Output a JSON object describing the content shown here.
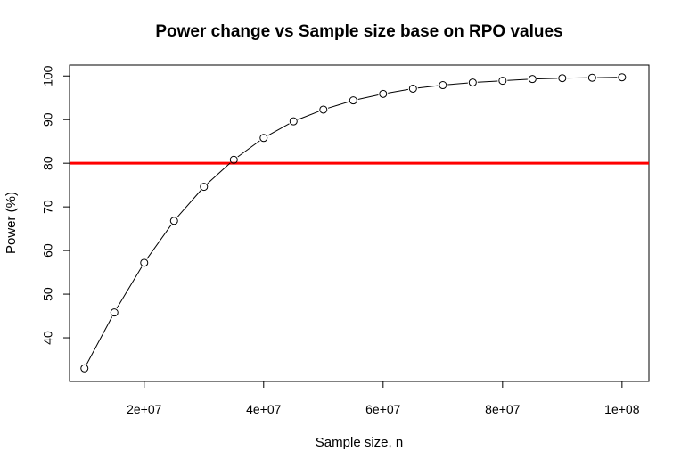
{
  "chart_data": {
    "type": "line",
    "title": "Power change vs Sample size base on RPO values",
    "xlabel": "Sample size, n",
    "ylabel": "Power (%)",
    "xlim": [
      7500000,
      104500000
    ],
    "ylim": [
      30,
      102.5
    ],
    "x_ticks": [
      20000000,
      40000000,
      60000000,
      80000000,
      100000000
    ],
    "x_tick_labels": [
      "2e+07",
      "4e+07",
      "6e+07",
      "8e+07",
      "1e+08"
    ],
    "y_ticks": [
      40,
      50,
      60,
      70,
      80,
      90,
      100
    ],
    "y_tick_labels": [
      "40",
      "50",
      "60",
      "70",
      "80",
      "90",
      "100"
    ],
    "grid": false,
    "series": [
      {
        "marker": "open-circle",
        "color": "#000000",
        "x": [
          10000000,
          15000000,
          20000000,
          25000000,
          30000000,
          35000000,
          40000000,
          45000000,
          50000000,
          55000000,
          60000000,
          65000000,
          70000000,
          75000000,
          80000000,
          85000000,
          90000000,
          95000000,
          100000000
        ],
        "y": [
          33.0,
          45.8,
          57.2,
          66.8,
          74.6,
          80.8,
          85.8,
          89.6,
          92.3,
          94.4,
          95.9,
          97.1,
          97.9,
          98.5,
          98.9,
          99.3,
          99.5,
          99.6,
          99.7
        ]
      }
    ],
    "reference_line": {
      "orientation": "horizontal",
      "y": 80,
      "color": "#ff0000"
    }
  }
}
